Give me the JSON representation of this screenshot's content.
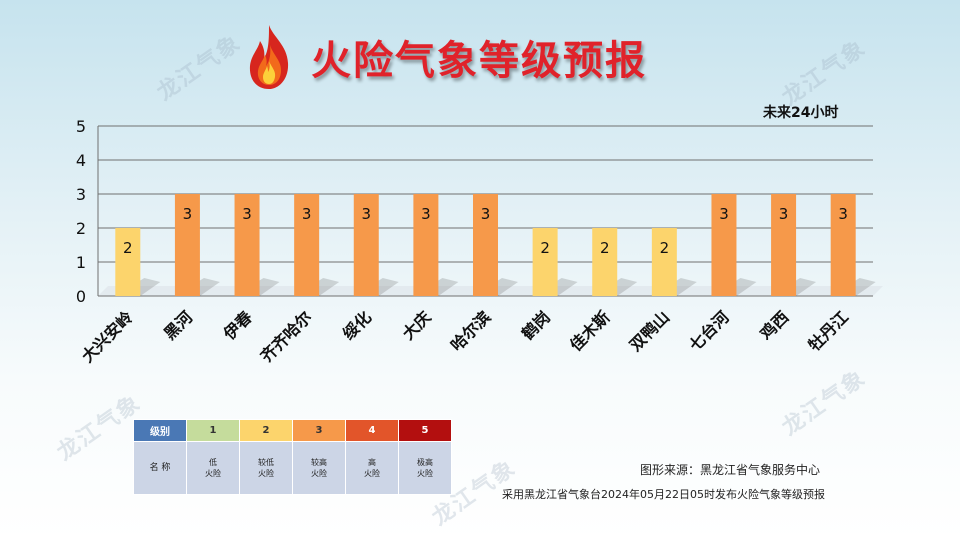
{
  "title": "火险气象等级预报",
  "subtitle": "未来24小时",
  "watermark_text": "龙江气象",
  "chart_data": {
    "type": "bar",
    "title": "火险气象等级预报",
    "subtitle": "未来24小时",
    "categories": [
      "大兴安岭",
      "黑河",
      "伊春",
      "齐齐哈尔",
      "绥化",
      "大庆",
      "哈尔滨",
      "鹤岗",
      "佳木斯",
      "双鸭山",
      "七台河",
      "鸡西",
      "牡丹江"
    ],
    "values": [
      2,
      3,
      3,
      3,
      3,
      3,
      3,
      2,
      2,
      2,
      3,
      3,
      3
    ],
    "ylim": [
      0,
      5
    ],
    "yticks": [
      0,
      1,
      2,
      3,
      4,
      5
    ],
    "grid": true,
    "data_labels": true,
    "level_colors": {
      "1": "#c5dc9c",
      "2": "#fcd46c",
      "3": "#f6994a",
      "4": "#e2552a",
      "5": "#b30f0f"
    }
  },
  "legend": {
    "header_label": "级别",
    "levels": [
      {
        "level": "1",
        "color": "#c5dc9c",
        "text_color": "#333333"
      },
      {
        "level": "2",
        "color": "#fcd46c",
        "text_color": "#333333"
      },
      {
        "level": "3",
        "color": "#f6994a",
        "text_color": "#333333"
      },
      {
        "level": "4",
        "color": "#e2552a",
        "text_color": "#ffffff"
      },
      {
        "level": "5",
        "color": "#b30f0f",
        "text_color": "#ffffff"
      }
    ],
    "name_label": "名 称",
    "names": [
      [
        "低",
        "火险"
      ],
      [
        "较低",
        "火险"
      ],
      [
        "较高",
        "火险"
      ],
      [
        "高",
        "火险"
      ],
      [
        "极高",
        "火险"
      ]
    ],
    "header_color": "#4a78b5"
  },
  "source_text": "图形来源：黑龙江省气象服务中心",
  "issue_text": "采用黑龙江省气象台2024年05月22日05时发布火险气象等级预报"
}
